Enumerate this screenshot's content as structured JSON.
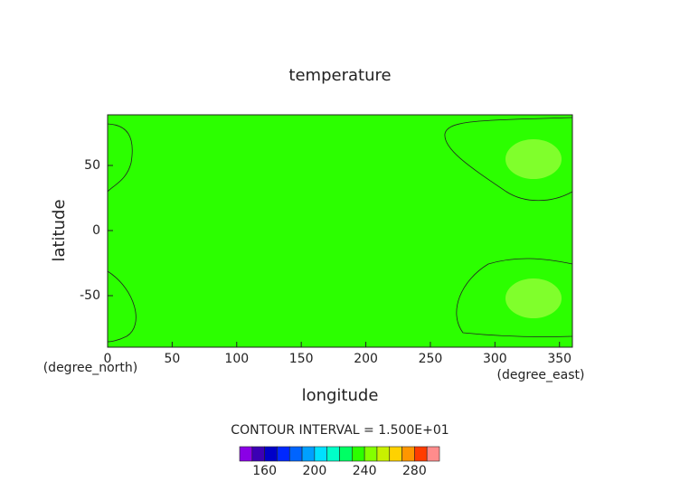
{
  "chart_data": {
    "type": "contour",
    "title": "temperature",
    "xlabel": "longitude",
    "ylabel": "latitude",
    "xunit": "(degree_east)",
    "yunit": "(degree_north)",
    "annotation": "CONTOUR INTERVAL = 1.500E+01",
    "xlim": [
      0,
      360
    ],
    "xticks": [
      0,
      50,
      100,
      150,
      200,
      250,
      300,
      350
    ],
    "ylim": [
      -90,
      90
    ],
    "yticks": [
      -50,
      0,
      50
    ],
    "field_color": "#2cff00",
    "colorbar": {
      "levels": [
        140,
        150,
        160,
        170,
        180,
        190,
        200,
        210,
        220,
        230,
        240,
        250,
        260,
        270,
        280,
        290,
        300
      ],
      "colors": [
        "#8a00e6",
        "#3c00b4",
        "#0000c8",
        "#0028ff",
        "#0064ff",
        "#00a0ff",
        "#00e0ff",
        "#00ffc8",
        "#00ff64",
        "#2cff00",
        "#84ff00",
        "#c8f000",
        "#ffd200",
        "#ff9600",
        "#ff3c00",
        "#ff8c8c"
      ],
      "ticks": [
        160,
        200,
        240,
        280
      ]
    }
  }
}
